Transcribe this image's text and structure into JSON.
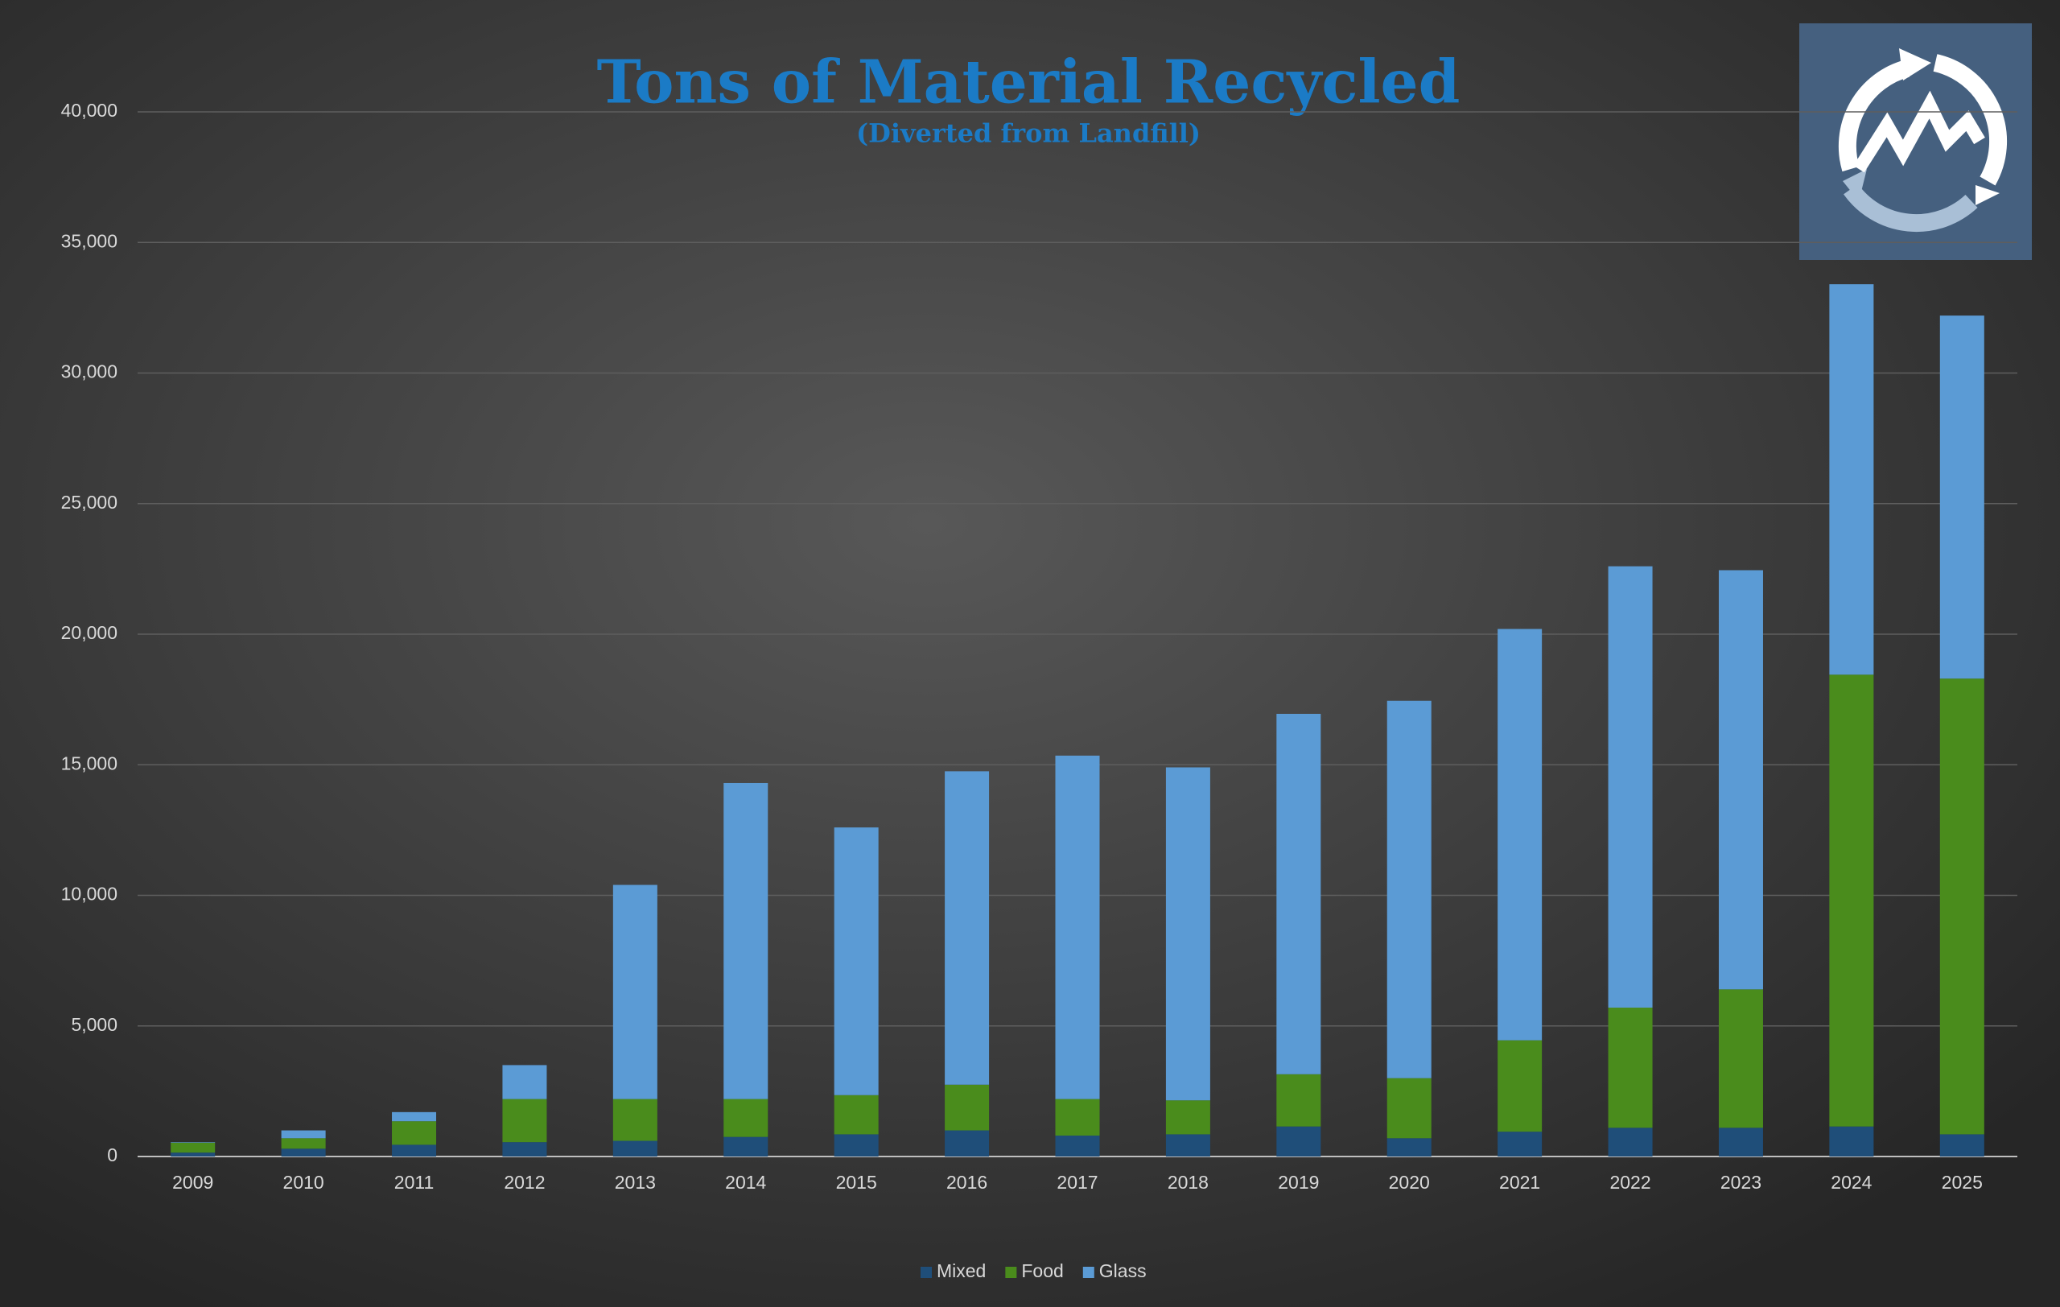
{
  "chart_data": {
    "type": "stacked-bar",
    "title": "Tons of Material Recycled",
    "subtitle": "(Diverted from Landfill)",
    "categories": [
      "2009",
      "2010",
      "2011",
      "2012",
      "2013",
      "2014",
      "2015",
      "2016",
      "2017",
      "2018",
      "2019",
      "2020",
      "2021",
      "2022",
      "2023",
      "2024",
      "2025"
    ],
    "series": [
      {
        "name": "Mixed",
        "color": "#1f4e79",
        "values": [
          150,
          300,
          450,
          550,
          600,
          750,
          850,
          1000,
          800,
          850,
          1150,
          700,
          950,
          1100,
          1100,
          1150,
          850
        ]
      },
      {
        "name": "Food",
        "color": "#4a8c1c",
        "values": [
          380,
          400,
          900,
          1650,
          1600,
          1450,
          1500,
          1750,
          1400,
          1300,
          2000,
          2300,
          3500,
          4600,
          5300,
          17300,
          17450
        ]
      },
      {
        "name": "Glass",
        "color": "#5b9bd5",
        "values": [
          20,
          300,
          350,
          1300,
          8200,
          12100,
          10250,
          12000,
          13150,
          12750,
          13800,
          14450,
          15750,
          16900,
          16050,
          14950,
          13900
        ]
      }
    ],
    "ylim": [
      0,
      40000
    ],
    "yticks": [
      0,
      {
        "value": 5000,
        "label": "5,000"
      },
      {
        "value": 10000,
        "label": "10,000"
      },
      {
        "value": 15000,
        "label": "15,000"
      },
      {
        "value": 20000,
        "label": "20,000"
      },
      {
        "value": 25000,
        "label": "25,000"
      },
      {
        "value": 30000,
        "label": "30,000"
      },
      {
        "value": 35000,
        "label": "35,000"
      },
      {
        "value": 40000,
        "label": "40,000"
      }
    ],
    "grid": true,
    "legend": "bottom"
  }
}
